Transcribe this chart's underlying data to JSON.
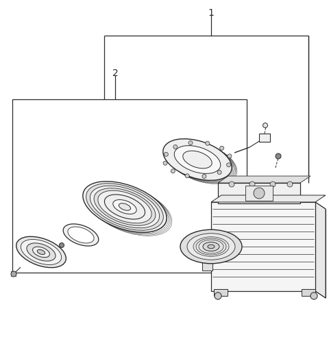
{
  "bg_color": "#ffffff",
  "lc": "#2a2a2a",
  "label1": "1",
  "label2": "2",
  "fig_width": 4.8,
  "fig_height": 4.92,
  "dpi": 100,
  "label_fontsize": 10
}
